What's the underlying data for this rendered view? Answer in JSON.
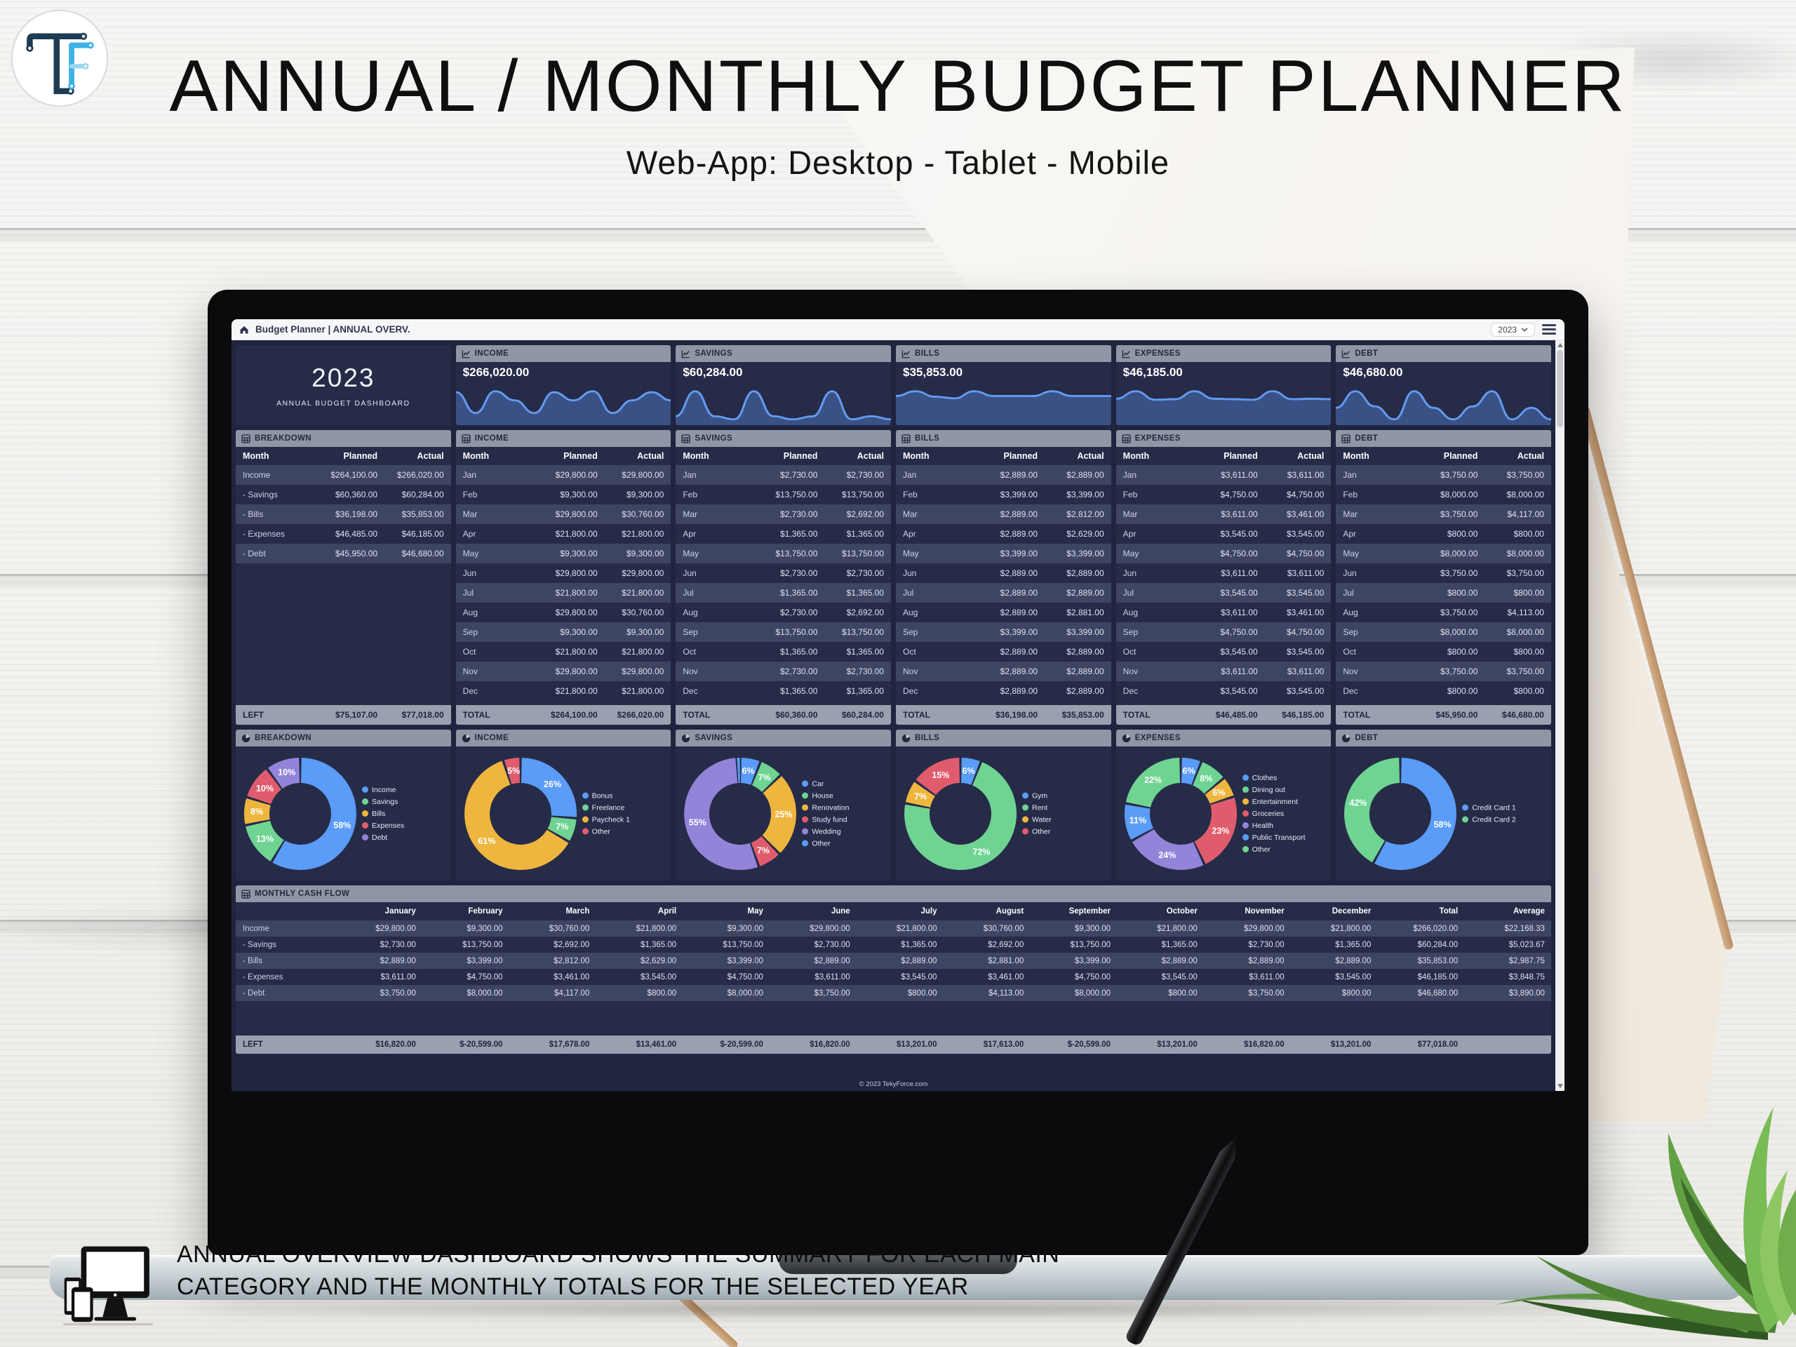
{
  "page": {
    "title": "ANNUAL / MONTHLY BUDGET PLANNER",
    "subtitle": "Web-App: Desktop - Tablet - Mobile",
    "caption_line1": "ANNUAL OVERVIEW DASHBOARD SHOWS THE SUMMARY FOR EACH MAIN",
    "caption_line2": "CATEGORY AND THE MONTHLY TOTALS FOR THE SELECTED YEAR"
  },
  "colors": {
    "blue": "#5a9cf7",
    "green": "#6fd392",
    "yellow": "#eeb63e",
    "red": "#e05c6d",
    "purple": "#9383d9",
    "panel": "#262b48",
    "row_light": "#3e4562",
    "header_gray": "#8f96a5",
    "spark_line": "#639af0"
  },
  "app": {
    "topbar": {
      "title": "Budget Planner | ANNUAL OVERV.",
      "year": "2023"
    },
    "year_panel": {
      "year": "2023",
      "label": "ANNUAL BUDGET DASHBOARD"
    },
    "footer": "© 2023 TekyForce.com",
    "kpis": [
      {
        "label": "INCOME",
        "value": "$266,020.00",
        "spark": [
          29800,
          9300,
          30760,
          21800,
          9300,
          29800,
          21800,
          30760,
          9300,
          21800,
          29800,
          21800
        ]
      },
      {
        "label": "SAVINGS",
        "value": "$60,284.00",
        "spark": [
          2730,
          13750,
          2692,
          1365,
          13750,
          2730,
          1365,
          2692,
          13750,
          1365,
          2730,
          1365
        ]
      },
      {
        "label": "BILLS",
        "value": "$35,853.00",
        "spark": [
          2889,
          3399,
          2812,
          2629,
          3399,
          2889,
          2889,
          2881,
          3399,
          2889,
          2889,
          2889
        ]
      },
      {
        "label": "EXPENSES",
        "value": "$46,185.00",
        "spark": [
          3611,
          4750,
          3461,
          3545,
          4750,
          3611,
          3545,
          3461,
          4750,
          3545,
          3611,
          3545
        ]
      },
      {
        "label": "DEBT",
        "value": "$46,680.00",
        "spark": [
          3750,
          8000,
          4117,
          800,
          8000,
          3750,
          800,
          4113,
          8000,
          800,
          3750,
          800
        ]
      }
    ],
    "tables": [
      {
        "title": "BREAKDOWN",
        "head": [
          "Month",
          "Planned",
          "Actual"
        ],
        "rows": [
          [
            "Income",
            "$264,100.00",
            "$266,020.00"
          ],
          [
            "- Savings",
            "$60,360.00",
            "$60,284.00"
          ],
          [
            "- Bills",
            "$36,198.00",
            "$35,853.00"
          ],
          [
            "- Expenses",
            "$46,485.00",
            "$46,185.00"
          ],
          [
            "- Debt",
            "$45,950.00",
            "$46,680.00"
          ]
        ],
        "total": [
          "LEFT",
          "$75,107.00",
          "$77,018.00"
        ]
      },
      {
        "title": "INCOME",
        "head": [
          "Month",
          "Planned",
          "Actual"
        ],
        "rows": [
          [
            "Jan",
            "$29,800.00",
            "$29,800.00"
          ],
          [
            "Feb",
            "$9,300.00",
            "$9,300.00"
          ],
          [
            "Mar",
            "$29,800.00",
            "$30,760.00"
          ],
          [
            "Apr",
            "$21,800.00",
            "$21,800.00"
          ],
          [
            "May",
            "$9,300.00",
            "$9,300.00"
          ],
          [
            "Jun",
            "$29,800.00",
            "$29,800.00"
          ],
          [
            "Jul",
            "$21,800.00",
            "$21,800.00"
          ],
          [
            "Aug",
            "$29,800.00",
            "$30,760.00"
          ],
          [
            "Sep",
            "$9,300.00",
            "$9,300.00"
          ],
          [
            "Oct",
            "$21,800.00",
            "$21,800.00"
          ],
          [
            "Nov",
            "$29,800.00",
            "$29,800.00"
          ],
          [
            "Dec",
            "$21,800.00",
            "$21,800.00"
          ]
        ],
        "total": [
          "TOTAL",
          "$264,100.00",
          "$266,020.00"
        ]
      },
      {
        "title": "SAVINGS",
        "head": [
          "Month",
          "Planned",
          "Actual"
        ],
        "rows": [
          [
            "Jan",
            "$2,730.00",
            "$2,730.00"
          ],
          [
            "Feb",
            "$13,750.00",
            "$13,750.00"
          ],
          [
            "Mar",
            "$2,730.00",
            "$2,692.00"
          ],
          [
            "Apr",
            "$1,365.00",
            "$1,365.00"
          ],
          [
            "May",
            "$13,750.00",
            "$13,750.00"
          ],
          [
            "Jun",
            "$2,730.00",
            "$2,730.00"
          ],
          [
            "Jul",
            "$1,365.00",
            "$1,365.00"
          ],
          [
            "Aug",
            "$2,730.00",
            "$2,692.00"
          ],
          [
            "Sep",
            "$13,750.00",
            "$13,750.00"
          ],
          [
            "Oct",
            "$1,365.00",
            "$1,365.00"
          ],
          [
            "Nov",
            "$2,730.00",
            "$2,730.00"
          ],
          [
            "Dec",
            "$1,365.00",
            "$1,365.00"
          ]
        ],
        "total": [
          "TOTAL",
          "$60,360.00",
          "$60,284.00"
        ]
      },
      {
        "title": "BILLS",
        "head": [
          "Month",
          "Planned",
          "Actual"
        ],
        "rows": [
          [
            "Jan",
            "$2,889.00",
            "$2,889.00"
          ],
          [
            "Feb",
            "$3,399.00",
            "$3,399.00"
          ],
          [
            "Mar",
            "$2,889.00",
            "$2,812.00"
          ],
          [
            "Apr",
            "$2,889.00",
            "$2,629.00"
          ],
          [
            "May",
            "$3,399.00",
            "$3,399.00"
          ],
          [
            "Jun",
            "$2,889.00",
            "$2,889.00"
          ],
          [
            "Jul",
            "$2,889.00",
            "$2,889.00"
          ],
          [
            "Aug",
            "$2,889.00",
            "$2,881.00"
          ],
          [
            "Sep",
            "$3,399.00",
            "$3,399.00"
          ],
          [
            "Oct",
            "$2,889.00",
            "$2,889.00"
          ],
          [
            "Nov",
            "$2,889.00",
            "$2,889.00"
          ],
          [
            "Dec",
            "$2,889.00",
            "$2,889.00"
          ]
        ],
        "total": [
          "TOTAL",
          "$36,198.00",
          "$35,853.00"
        ]
      },
      {
        "title": "EXPENSES",
        "head": [
          "Month",
          "Planned",
          "Actual"
        ],
        "rows": [
          [
            "Jan",
            "$3,611.00",
            "$3,611.00"
          ],
          [
            "Feb",
            "$4,750.00",
            "$4,750.00"
          ],
          [
            "Mar",
            "$3,611.00",
            "$3,461.00"
          ],
          [
            "Apr",
            "$3,545.00",
            "$3,545.00"
          ],
          [
            "May",
            "$4,750.00",
            "$4,750.00"
          ],
          [
            "Jun",
            "$3,611.00",
            "$3,611.00"
          ],
          [
            "Jul",
            "$3,545.00",
            "$3,545.00"
          ],
          [
            "Aug",
            "$3,611.00",
            "$3,461.00"
          ],
          [
            "Sep",
            "$4,750.00",
            "$4,750.00"
          ],
          [
            "Oct",
            "$3,545.00",
            "$3,545.00"
          ],
          [
            "Nov",
            "$3,611.00",
            "$3,611.00"
          ],
          [
            "Dec",
            "$3,545.00",
            "$3,545.00"
          ]
        ],
        "total": [
          "TOTAL",
          "$46,485.00",
          "$46,185.00"
        ]
      },
      {
        "title": "DEBT",
        "head": [
          "Month",
          "Planned",
          "Actual"
        ],
        "rows": [
          [
            "Jan",
            "$3,750.00",
            "$3,750.00"
          ],
          [
            "Feb",
            "$8,000.00",
            "$8,000.00"
          ],
          [
            "Mar",
            "$3,750.00",
            "$4,117.00"
          ],
          [
            "Apr",
            "$800.00",
            "$800.00"
          ],
          [
            "May",
            "$8,000.00",
            "$8,000.00"
          ],
          [
            "Jun",
            "$3,750.00",
            "$3,750.00"
          ],
          [
            "Jul",
            "$800.00",
            "$800.00"
          ],
          [
            "Aug",
            "$3,750.00",
            "$4,113.00"
          ],
          [
            "Sep",
            "$8,000.00",
            "$8,000.00"
          ],
          [
            "Oct",
            "$800.00",
            "$800.00"
          ],
          [
            "Nov",
            "$3,750.00",
            "$3,750.00"
          ],
          [
            "Dec",
            "$800.00",
            "$800.00"
          ]
        ],
        "total": [
          "TOTAL",
          "$45,950.00",
          "$46,680.00"
        ]
      }
    ],
    "donuts": [
      {
        "title": "BREAKDOWN",
        "labels": [
          "Income",
          "Savings",
          "Bills",
          "Expenses",
          "Debt"
        ],
        "values": [
          58,
          13,
          8,
          10,
          10
        ],
        "colors": [
          "#5a9cf7",
          "#6fd392",
          "#eeb63e",
          "#e05c6d",
          "#9383d9"
        ]
      },
      {
        "title": "INCOME",
        "labels": [
          "Bonus",
          "Freelance",
          "Paycheck 1",
          "Other"
        ],
        "values": [
          26,
          7,
          61,
          5
        ],
        "colors": [
          "#5a9cf7",
          "#6fd392",
          "#eeb63e",
          "#e05c6d"
        ]
      },
      {
        "title": "SAVINGS",
        "labels": [
          "Car",
          "House",
          "Renovation",
          "Study fund",
          "Wedding",
          "Other"
        ],
        "values": [
          6,
          7,
          25,
          7,
          55,
          1
        ],
        "colors": [
          "#5a9cf7",
          "#6fd392",
          "#eeb63e",
          "#e05c6d",
          "#9383d9",
          "#5a9cf7"
        ]
      },
      {
        "title": "BILLS",
        "labels": [
          "Gym",
          "Rent",
          "Water",
          "Other"
        ],
        "values": [
          6,
          72,
          7,
          15
        ],
        "colors": [
          "#5a9cf7",
          "#6fd392",
          "#eeb63e",
          "#e05c6d"
        ]
      },
      {
        "title": "EXPENSES",
        "labels": [
          "Clothes",
          "Dining out",
          "Entertainment",
          "Groceries",
          "Health",
          "Public Transport",
          "Other"
        ],
        "values": [
          6,
          8,
          6,
          23,
          24,
          11,
          22
        ],
        "colors": [
          "#5a9cf7",
          "#6fd392",
          "#eeb63e",
          "#e05c6d",
          "#9383d9",
          "#5a9cf7",
          "#6fd392"
        ]
      },
      {
        "title": "DEBT",
        "labels": [
          "Credit Card 1",
          "Credit Card 2"
        ],
        "values": [
          58,
          42
        ],
        "colors": [
          "#5a9cf7",
          "#6fd392"
        ]
      }
    ],
    "cashflow": {
      "title": "MONTHLY CASH FLOW",
      "columns": [
        "",
        "January",
        "February",
        "March",
        "April",
        "May",
        "June",
        "July",
        "August",
        "September",
        "October",
        "November",
        "December",
        "Total",
        "Average"
      ],
      "rows": [
        {
          "label": "Income",
          "cells": [
            "$29,800.00",
            "$9,300.00",
            "$30,760.00",
            "$21,800.00",
            "$9,300.00",
            "$29,800.00",
            "$21,800.00",
            "$30,760.00",
            "$9,300.00",
            "$21,800.00",
            "$29,800.00",
            "$21,800.00",
            "$266,020.00",
            "$22,168.33"
          ]
        },
        {
          "label": "- Savings",
          "cells": [
            "$2,730.00",
            "$13,750.00",
            "$2,692.00",
            "$1,365.00",
            "$13,750.00",
            "$2,730.00",
            "$1,365.00",
            "$2,692.00",
            "$13,750.00",
            "$1,365.00",
            "$2,730.00",
            "$1,365.00",
            "$60,284.00",
            "$5,023.67"
          ]
        },
        {
          "label": "- Bills",
          "cells": [
            "$2,889.00",
            "$3,399.00",
            "$2,812.00",
            "$2,629.00",
            "$3,399.00",
            "$2,889.00",
            "$2,889.00",
            "$2,881.00",
            "$3,399.00",
            "$2,889.00",
            "$2,889.00",
            "$2,889.00",
            "$35,853.00",
            "$2,987.75"
          ]
        },
        {
          "label": "- Expenses",
          "cells": [
            "$3,611.00",
            "$4,750.00",
            "$3,461.00",
            "$3,545.00",
            "$4,750.00",
            "$3,611.00",
            "$3,545.00",
            "$3,461.00",
            "$4,750.00",
            "$3,545.00",
            "$3,611.00",
            "$3,545.00",
            "$46,185.00",
            "$3,848.75"
          ]
        },
        {
          "label": "- Debt",
          "cells": [
            "$3,750.00",
            "$8,000.00",
            "$4,117.00",
            "$800.00",
            "$8,000.00",
            "$3,750.00",
            "$800.00",
            "$4,113.00",
            "$8,000.00",
            "$800.00",
            "$3,750.00",
            "$800.00",
            "$46,680.00",
            "$3,890.00"
          ]
        }
      ],
      "left": {
        "label": "LEFT",
        "cells": [
          "$16,820.00",
          "$-20,599.00",
          "$17,678.00",
          "$13,461.00",
          "$-20,599.00",
          "$16,820.00",
          "$13,201.00",
          "$17,613.00",
          "$-20,599.00",
          "$13,201.00",
          "$16,820.00",
          "$13,201.00",
          "$77,018.00",
          ""
        ]
      }
    }
  }
}
